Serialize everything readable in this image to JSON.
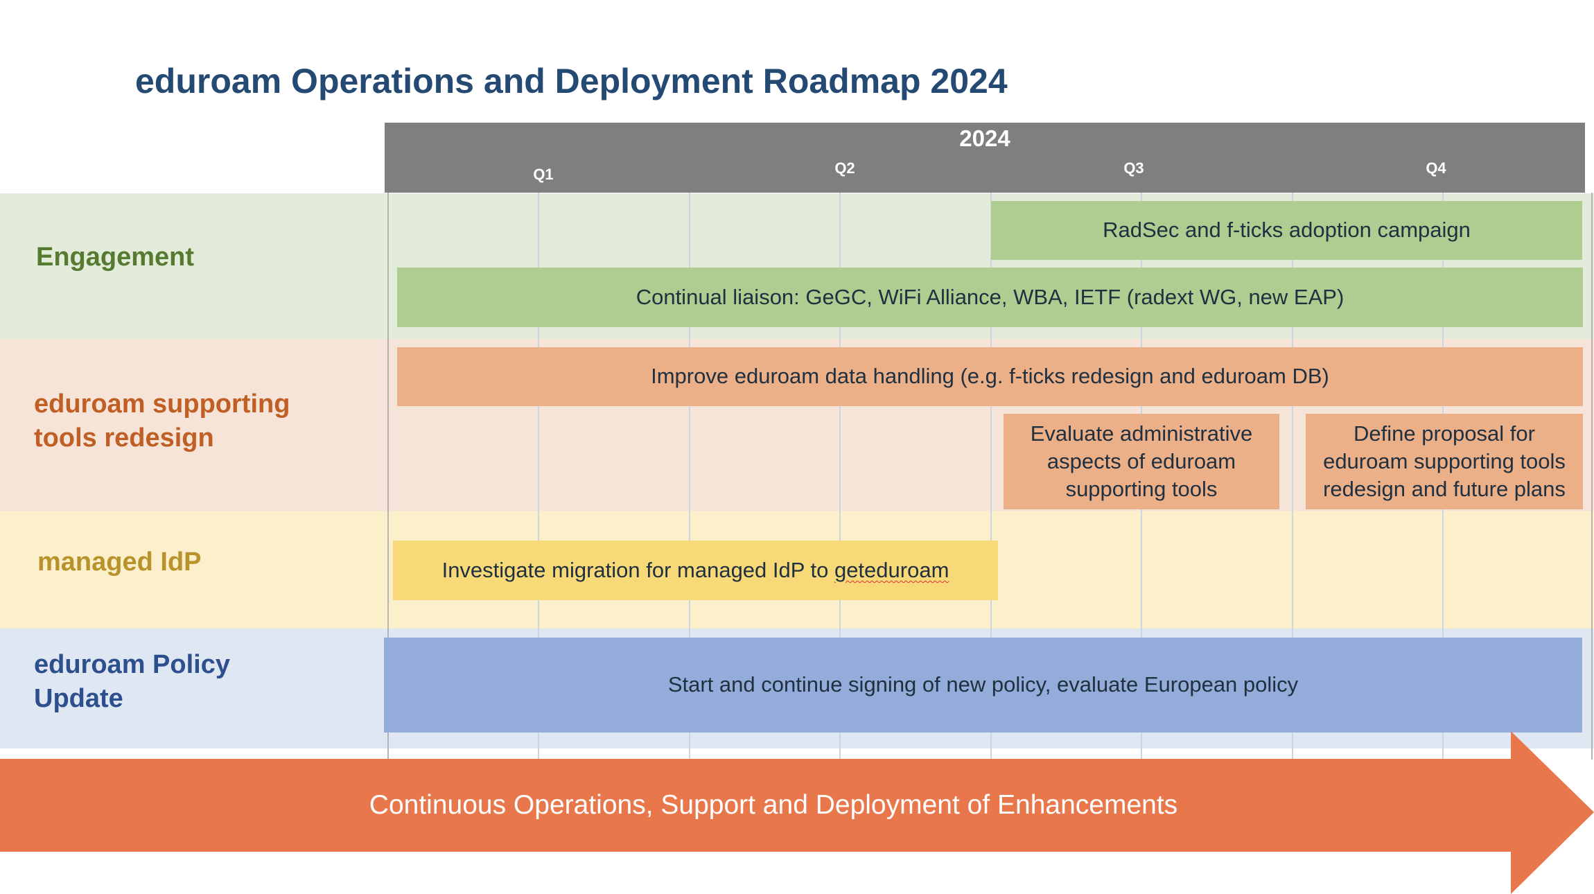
{
  "title": "eduroam Operations and Deployment Roadmap 2024",
  "header": {
    "year": "2024",
    "quarters": [
      "Q1",
      "Q2",
      "Q3",
      "Q4"
    ]
  },
  "bands": [
    {
      "label_lines": [
        "Engagement"
      ],
      "color": "#e3ecda",
      "label_color": "#557a30"
    },
    {
      "label_lines": [
        "eduroam supporting",
        "tools redesign"
      ],
      "color": "#f6e4d8",
      "label_color": "#c05e24"
    },
    {
      "label_lines": [
        "managed IdP"
      ],
      "color": "#fcefcc",
      "label_color": "#b8922a"
    },
    {
      "label_lines": [
        "eduroam Policy",
        "Update"
      ],
      "color": "#dfe7f3",
      "label_color": "#2d4f8e"
    }
  ],
  "bars": [
    {
      "text": "RadSec and f-ticks adoption campaign",
      "color": "#afcd90"
    },
    {
      "text": "Continual liaison: GeGC, WiFi Alliance, WBA, IETF (radext WG, new EAP)",
      "color": "#afcd90"
    },
    {
      "text": "Improve eduroam data handling (e.g. f-ticks redesign and eduroam DB)",
      "color": "#ebb088"
    },
    {
      "text": "Evaluate administrative aspects of eduroam supporting tools",
      "color": "#ebb088"
    },
    {
      "text": "Define proposal for eduroam supporting tools redesign and future plans",
      "color": "#ebb088"
    },
    {
      "text_before": "Investigate migration for managed IdP to ",
      "text_flagged": "geteduroam",
      "color": "#f8d978"
    },
    {
      "text": "Start and continue signing of new policy, evaluate European policy",
      "color": "#93acd9"
    }
  ],
  "footer_arrow": {
    "text": "Continuous Operations, Support and Deployment of Enhancements",
    "color": "#e8784c"
  }
}
